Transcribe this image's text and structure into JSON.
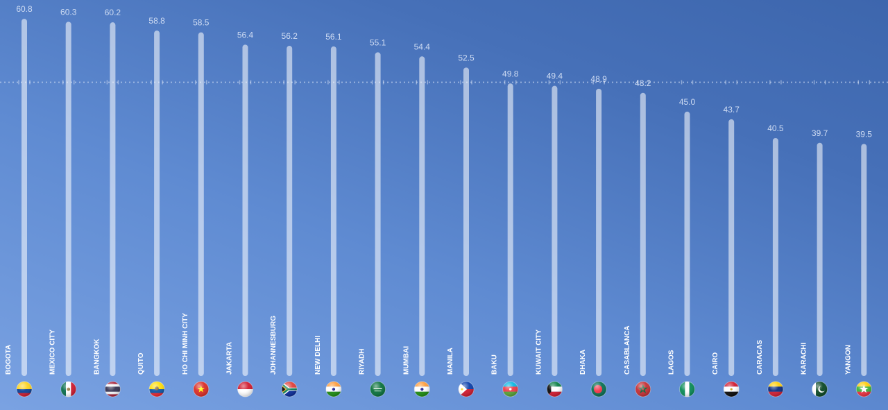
{
  "chart_data": {
    "type": "bar",
    "categories": [
      "BOGOTA",
      "MEXICO CITY",
      "BANGKOK",
      "QUITO",
      "HO CHI MINH CITY",
      "JAKARTA",
      "JOHANNESBURG",
      "NEW DELHI",
      "RIYADH",
      "MUMBAI",
      "MANILA",
      "BAKU",
      "KUWAIT CITY",
      "DHAKA",
      "CASABLANCA",
      "LAGOS",
      "CAIRO",
      "CARACAS",
      "KARACHI",
      "YANGON"
    ],
    "values": [
      60.8,
      60.3,
      60.2,
      58.8,
      58.5,
      56.4,
      56.2,
      56.1,
      55.1,
      54.4,
      52.5,
      49.8,
      49.4,
      48.9,
      48.2,
      45.0,
      43.7,
      40.5,
      39.7,
      39.5
    ],
    "value_labels": [
      "60.8",
      "60.3",
      "60.2",
      "58.8",
      "58.5",
      "56.4",
      "56.2",
      "56.1",
      "55.1",
      "54.4",
      "52.5",
      "49.8",
      "49.4",
      "48.9",
      "48.2",
      "45.0",
      "43.7",
      "40.5",
      "39.7",
      "39.5"
    ],
    "flag_icons": [
      "colombia-flag-icon",
      "mexico-flag-icon",
      "thailand-flag-icon",
      "ecuador-flag-icon",
      "vietnam-flag-icon",
      "indonesia-flag-icon",
      "south-africa-flag-icon",
      "india-flag-icon",
      "saudi-arabia-flag-icon",
      "india-flag-icon",
      "philippines-flag-icon",
      "azerbaijan-flag-icon",
      "kuwait-flag-icon",
      "bangladesh-flag-icon",
      "morocco-flag-icon",
      "nigeria-flag-icon",
      "egypt-flag-icon",
      "venezuela-flag-icon",
      "pakistan-flag-icon",
      "myanmar-flag-icon"
    ],
    "ylim": [
      0,
      64
    ],
    "reference_line": 50,
    "title": "",
    "xlabel": "",
    "ylabel": "",
    "grid": false,
    "legend": "none",
    "colors": {
      "bar": "#ffffff",
      "value_label": "#cfdcf3",
      "city_label": "#ffffff",
      "reference_line": "#dbe6f7"
    }
  }
}
